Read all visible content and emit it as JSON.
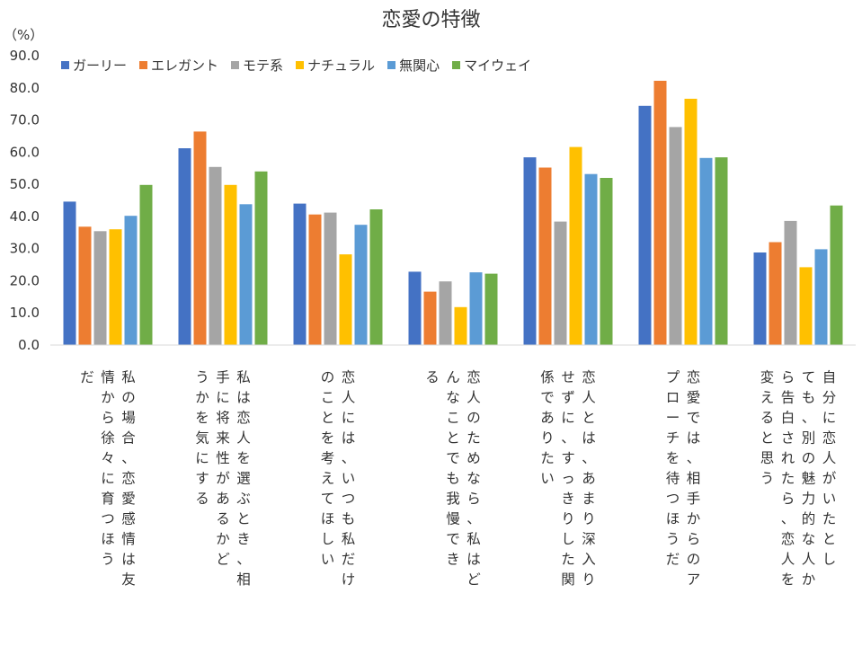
{
  "chart_data": {
    "type": "bar",
    "title": "恋愛の特徴",
    "ylabel": "（%）",
    "xlabel": "",
    "ylim": [
      0,
      90
    ],
    "yticks": [
      "0.0",
      "10.0",
      "20.0",
      "30.0",
      "40.0",
      "50.0",
      "60.0",
      "70.0",
      "80.0",
      "90.0"
    ],
    "grid": false,
    "legend_position": "top",
    "categories": [
      "私の場合、恋愛感情は友情から徐々に育つほうだ",
      "私は恋人を選ぶとき、相手に将来性があるかどうかを気にする",
      "恋人には、いつも私だけのことを考えてほしい",
      "恋人のためなら、私はどんなことでも我慢できる",
      "恋人とは、あまり深入りせずに、すっきりした関係でありたい",
      "恋愛では、相手からのアプローチを待つほうだ",
      "自分に恋人がいたとしても、別の魅力的な人から告白されたら、恋人を変えると思う"
    ],
    "category_lines": [
      [
        "私の場合、恋愛感情は友",
        "情から徐々に育つほう",
        "だ"
      ],
      [
        "私は恋人を選ぶとき、相",
        "手に将来性があるかど",
        "うかを気にする"
      ],
      [
        "恋人には、いつも私だけ",
        "のことを考えてほしい"
      ],
      [
        "恋人のためなら、私はど",
        "んなことでも我慢でき",
        "る"
      ],
      [
        "恋人とは、あまり深入り",
        "せずに、すっきりした関",
        "係でありたい"
      ],
      [
        "恋愛では、相手からのア",
        "プローチを待つほうだ"
      ],
      [
        "自分に恋人がいたとし",
        "ても、別の魅力的な人か",
        "ら告白されたら、恋人を",
        "変えると思う"
      ]
    ],
    "series": [
      {
        "name": "ガーリー",
        "color": "#4472c4",
        "values": [
          44.6,
          61.2,
          44.0,
          22.8,
          58.4,
          74.4,
          28.8
        ]
      },
      {
        "name": "エレガント",
        "color": "#ed7d31",
        "values": [
          36.8,
          66.4,
          40.6,
          16.6,
          55.2,
          82.2,
          32.0
        ]
      },
      {
        "name": "モテ系",
        "color": "#a5a5a5",
        "values": [
          35.4,
          55.4,
          41.2,
          19.8,
          38.4,
          67.8,
          38.6
        ]
      },
      {
        "name": "ナチュラル",
        "color": "#ffc000",
        "values": [
          36.0,
          49.8,
          28.2,
          11.8,
          61.6,
          76.6,
          24.2
        ]
      },
      {
        "name": "無関心",
        "color": "#5b9bd5",
        "values": [
          40.2,
          43.8,
          37.4,
          22.6,
          53.2,
          58.2,
          29.8
        ]
      },
      {
        "name": "マイウェイ",
        "color": "#70ad47",
        "values": [
          49.8,
          54.0,
          42.2,
          22.2,
          52.0,
          58.4,
          43.4
        ]
      }
    ]
  }
}
